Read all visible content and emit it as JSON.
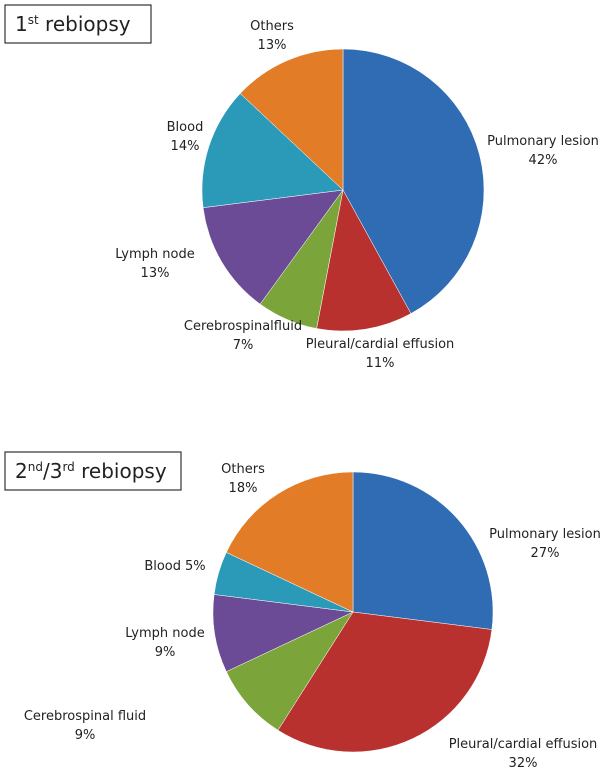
{
  "chart_data": [
    {
      "type": "pie",
      "title": [
        {
          "text": "1",
          "superscript": false
        },
        {
          "text": "st",
          "superscript": true
        },
        {
          "text": " rebiopsy",
          "superscript": false
        }
      ],
      "categories": [
        "Pulmonary lesion",
        "Pleural/cardial effusion",
        "Cerebrospinalfluid",
        "Lymph node",
        "Blood",
        "Others"
      ],
      "values": [
        42,
        11,
        7,
        13,
        14,
        13
      ],
      "value_labels": [
        "42%",
        "11%",
        "7%",
        "13%",
        "14%",
        "13%"
      ],
      "colors": [
        "#2f6cb4",
        "#b8312f",
        "#7ba53b",
        "#6b4b95",
        "#2b9ab8",
        "#e27c26"
      ]
    },
    {
      "type": "pie",
      "title": [
        {
          "text": "2",
          "superscript": false
        },
        {
          "text": "nd",
          "superscript": true
        },
        {
          "text": "/3",
          "superscript": false
        },
        {
          "text": "rd",
          "superscript": true
        },
        {
          "text": " rebiopsy",
          "superscript": false
        }
      ],
      "categories": [
        "Pulmonary lesion",
        "Pleural/cardial effusion",
        "Cerebrospinal fluid",
        "Lymph node",
        "Blood",
        "Others"
      ],
      "values": [
        27,
        32,
        9,
        9,
        5,
        18
      ],
      "value_labels": [
        "27%",
        "32%",
        "9%",
        "9%",
        "5%",
        "18%"
      ],
      "colors": [
        "#2f6cb4",
        "#b8312f",
        "#7ba53b",
        "#6b4b95",
        "#2b9ab8",
        "#e27c26"
      ]
    }
  ]
}
